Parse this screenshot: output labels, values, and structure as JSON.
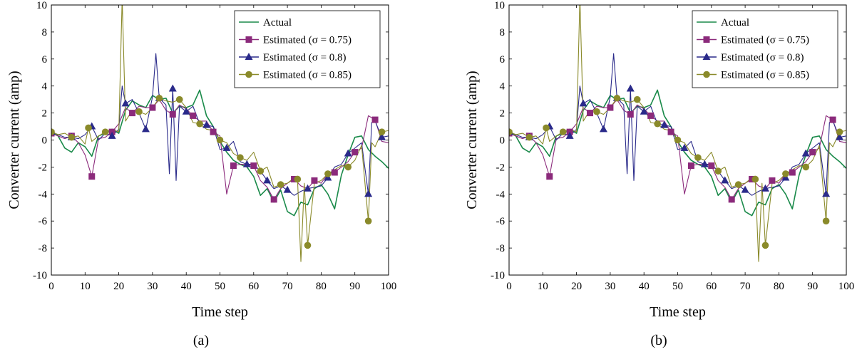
{
  "figure": {
    "captions": [
      "(a)",
      "(b)"
    ]
  },
  "chart_data": [
    {
      "type": "line",
      "caption": "(a)",
      "xlabel": "Time step",
      "ylabel": "Converter current (amp)",
      "xlim": [
        0,
        100
      ],
      "ylim": [
        -10,
        10
      ],
      "xticks": [
        0,
        10,
        20,
        30,
        40,
        50,
        60,
        70,
        80,
        90,
        100
      ],
      "yticks": [
        -10,
        -8,
        -6,
        -4,
        -2,
        0,
        2,
        4,
        6,
        8,
        10
      ],
      "grid": false,
      "legend_position": "top-right",
      "series": [
        {
          "name": "Actual",
          "color": "#1a8a4a",
          "marker": "none",
          "x": [
            0,
            2,
            4,
            6,
            8,
            10,
            12,
            14,
            16,
            18,
            20,
            22,
            24,
            26,
            28,
            30,
            32,
            34,
            36,
            38,
            40,
            42,
            44,
            46,
            48,
            50,
            52,
            54,
            56,
            58,
            60,
            62,
            64,
            66,
            68,
            70,
            72,
            74,
            76,
            78,
            80,
            82,
            84,
            86,
            88,
            90,
            92,
            94,
            96,
            98,
            100
          ],
          "y": [
            0.7,
            0.3,
            -0.6,
            -0.9,
            -0.2,
            -0.5,
            -1.2,
            0.3,
            0.5,
            0.8,
            0.5,
            2.2,
            2.9,
            2.6,
            2.4,
            3.3,
            3.0,
            3.1,
            2.0,
            2.5,
            2.4,
            2.6,
            3.7,
            1.8,
            1.0,
            -0.1,
            -0.9,
            -1.5,
            -1.8,
            -2.0,
            -2.7,
            -4.1,
            -3.6,
            -4.6,
            -3.7,
            -5.3,
            -5.6,
            -4.6,
            -4.8,
            -3.6,
            -3.3,
            -4.0,
            -5.1,
            -2.6,
            -1.1,
            0.2,
            0.3,
            -0.7,
            -1.2,
            -1.6,
            -2.1
          ]
        },
        {
          "name": "Estimated (σ = 0.75)",
          "color": "#8b2a7b",
          "marker": "square",
          "x": [
            0,
            2,
            4,
            6,
            8,
            10,
            12,
            14,
            16,
            18,
            20,
            22,
            24,
            26,
            28,
            30,
            32,
            34,
            36,
            38,
            40,
            42,
            44,
            46,
            48,
            50,
            52,
            54,
            56,
            58,
            60,
            62,
            64,
            66,
            68,
            70,
            72,
            74,
            76,
            78,
            80,
            82,
            84,
            86,
            88,
            90,
            92,
            94,
            96,
            98,
            100
          ],
          "y": [
            0.5,
            0.3,
            0.1,
            0.3,
            -0.2,
            -1.1,
            -2.7,
            0.1,
            0.2,
            0.6,
            1.2,
            2.4,
            2.0,
            2.5,
            2.4,
            2.4,
            3.0,
            2.2,
            1.9,
            2.6,
            2.3,
            1.8,
            1.4,
            1.4,
            0.6,
            0.3,
            -4.0,
            -1.9,
            -1.8,
            -1.8,
            -1.9,
            -3.0,
            -3.5,
            -4.4,
            -3.6,
            -3.2,
            -2.9,
            -3.4,
            -3.6,
            -3.0,
            -3.2,
            -2.5,
            -2.4,
            -2.0,
            -1.6,
            -0.9,
            -0.6,
            1.8,
            1.5,
            -0.1,
            -0.2
          ]
        },
        {
          "name": "Estimated (σ = 0.8)",
          "color": "#2a2a8a",
          "marker": "triangle",
          "x": [
            0,
            2,
            4,
            6,
            8,
            10,
            12,
            14,
            16,
            18,
            20,
            21,
            22,
            24,
            26,
            28,
            30,
            31,
            32,
            34,
            35,
            36,
            37,
            38,
            40,
            42,
            44,
            46,
            48,
            50,
            52,
            54,
            56,
            58,
            60,
            62,
            64,
            66,
            68,
            70,
            72,
            74,
            76,
            78,
            80,
            82,
            84,
            86,
            88,
            90,
            92,
            94,
            95,
            96,
            98,
            100
          ],
          "y": [
            0.6,
            0.4,
            0.2,
            0.2,
            0.1,
            0.4,
            1.0,
            0.0,
            0.5,
            0.3,
            0.8,
            4.0,
            2.7,
            3.0,
            2.0,
            0.8,
            3.2,
            6.4,
            3.1,
            2.6,
            -2.5,
            3.8,
            -3.0,
            2.5,
            2.1,
            2.5,
            1.2,
            1.1,
            1.0,
            -0.7,
            -0.6,
            -0.1,
            -1.6,
            -1.8,
            -1.8,
            -2.3,
            -3.0,
            -3.6,
            -3.4,
            -3.7,
            -4.1,
            -3.8,
            -3.6,
            -3.5,
            -3.4,
            -2.8,
            -2.0,
            -1.8,
            -1.0,
            -0.6,
            -0.2,
            -4.0,
            1.3,
            1.4,
            0.2,
            0.3
          ]
        },
        {
          "name": "Estimated (σ = 0.85)",
          "color": "#8a8a2a",
          "marker": "circle",
          "x": [
            0,
            2,
            4,
            6,
            8,
            10,
            11,
            12,
            14,
            16,
            18,
            20,
            21,
            22,
            24,
            26,
            28,
            30,
            32,
            34,
            36,
            38,
            40,
            42,
            44,
            46,
            48,
            50,
            52,
            54,
            56,
            58,
            60,
            62,
            64,
            66,
            68,
            70,
            72,
            73,
            74,
            75,
            76,
            78,
            80,
            82,
            84,
            86,
            88,
            90,
            92,
            94,
            95,
            96,
            98,
            100
          ],
          "y": [
            0.6,
            0.4,
            0.5,
            0.2,
            0.3,
            -0.3,
            0.9,
            -0.1,
            0.3,
            0.6,
            0.8,
            0.6,
            10.5,
            1.4,
            2.2,
            2.1,
            1.9,
            2.4,
            3.1,
            2.9,
            2.8,
            3.0,
            2.4,
            1.3,
            1.2,
            0.8,
            0.7,
            0.0,
            -0.2,
            -1.0,
            -1.3,
            -1.5,
            -0.9,
            -2.3,
            -2.0,
            -3.5,
            -3.3,
            -3.2,
            -2.8,
            -2.9,
            -9.0,
            -3.2,
            -7.8,
            -3.2,
            -3.0,
            -2.5,
            -2.2,
            -1.9,
            -2.0,
            -1.5,
            -0.4,
            -6.0,
            -0.2,
            -0.5,
            0.6,
            0.7
          ]
        }
      ]
    },
    {
      "type": "line",
      "caption": "(b)",
      "xlabel": "Time step",
      "ylabel": "Converter current (amp)",
      "xlim": [
        0,
        100
      ],
      "ylim": [
        -10,
        10
      ],
      "xticks": [
        0,
        10,
        20,
        30,
        40,
        50,
        60,
        70,
        80,
        90,
        100
      ],
      "yticks": [
        -10,
        -8,
        -6,
        -4,
        -2,
        0,
        2,
        4,
        6,
        8,
        10
      ],
      "grid": false,
      "legend_position": "top-right",
      "series": [
        {
          "name": "Actual",
          "color": "#1a8a4a",
          "marker": "none",
          "x": [
            0,
            2,
            4,
            6,
            8,
            10,
            12,
            14,
            16,
            18,
            20,
            22,
            24,
            26,
            28,
            30,
            32,
            34,
            36,
            38,
            40,
            42,
            44,
            46,
            48,
            50,
            52,
            54,
            56,
            58,
            60,
            62,
            64,
            66,
            68,
            70,
            72,
            74,
            76,
            78,
            80,
            82,
            84,
            86,
            88,
            90,
            92,
            94,
            96,
            98,
            100
          ],
          "y": [
            0.7,
            0.3,
            -0.6,
            -0.9,
            -0.2,
            -0.5,
            -1.2,
            0.3,
            0.5,
            0.8,
            0.5,
            2.2,
            2.9,
            2.6,
            2.4,
            3.3,
            3.0,
            3.1,
            2.0,
            2.5,
            2.4,
            2.6,
            3.7,
            1.8,
            1.0,
            -0.1,
            -0.9,
            -1.5,
            -1.8,
            -2.0,
            -2.7,
            -4.1,
            -3.6,
            -4.6,
            -3.7,
            -5.3,
            -5.6,
            -4.6,
            -4.8,
            -3.6,
            -3.3,
            -4.0,
            -5.1,
            -2.6,
            -1.1,
            0.2,
            0.3,
            -0.7,
            -1.2,
            -1.6,
            -2.1
          ]
        },
        {
          "name": "Estimated (σ = 0.75)",
          "color": "#8b2a7b",
          "marker": "square",
          "x": [
            0,
            2,
            4,
            6,
            8,
            10,
            12,
            14,
            16,
            18,
            20,
            22,
            24,
            26,
            28,
            30,
            32,
            34,
            36,
            38,
            40,
            42,
            44,
            46,
            48,
            50,
            52,
            54,
            56,
            58,
            60,
            62,
            64,
            66,
            68,
            70,
            72,
            74,
            76,
            78,
            80,
            82,
            84,
            86,
            88,
            90,
            92,
            94,
            96,
            98,
            100
          ],
          "y": [
            0.5,
            0.3,
            0.1,
            0.3,
            -0.2,
            -1.1,
            -2.7,
            0.1,
            0.2,
            0.6,
            1.2,
            2.4,
            2.0,
            2.5,
            2.4,
            2.4,
            3.0,
            2.2,
            1.9,
            2.6,
            2.3,
            1.8,
            1.4,
            1.4,
            0.6,
            0.3,
            -4.0,
            -1.9,
            -1.8,
            -1.8,
            -1.9,
            -3.0,
            -3.5,
            -4.4,
            -3.6,
            -3.2,
            -2.9,
            -3.4,
            -3.6,
            -3.0,
            -3.2,
            -2.5,
            -2.4,
            -2.0,
            -1.6,
            -0.9,
            -0.6,
            1.8,
            1.5,
            -0.1,
            -0.2
          ]
        },
        {
          "name": "Estimated (σ = 0.8)",
          "color": "#2a2a8a",
          "marker": "triangle",
          "x": [
            0,
            2,
            4,
            6,
            8,
            10,
            12,
            14,
            16,
            18,
            20,
            21,
            22,
            24,
            26,
            28,
            30,
            31,
            32,
            34,
            35,
            36,
            37,
            38,
            40,
            42,
            44,
            46,
            48,
            50,
            52,
            54,
            56,
            58,
            60,
            62,
            64,
            66,
            68,
            70,
            72,
            74,
            76,
            78,
            80,
            82,
            84,
            86,
            88,
            90,
            92,
            94,
            95,
            96,
            98,
            100
          ],
          "y": [
            0.6,
            0.4,
            0.2,
            0.2,
            0.1,
            0.4,
            1.0,
            0.0,
            0.5,
            0.3,
            0.8,
            4.0,
            2.7,
            3.0,
            2.0,
            0.8,
            3.2,
            6.4,
            3.1,
            2.6,
            -2.5,
            3.8,
            -3.0,
            2.5,
            2.1,
            2.5,
            1.2,
            1.1,
            1.0,
            -0.7,
            -0.6,
            -0.1,
            -1.6,
            -1.8,
            -1.8,
            -2.3,
            -3.0,
            -3.6,
            -3.4,
            -3.7,
            -4.1,
            -3.8,
            -3.6,
            -3.5,
            -3.4,
            -2.8,
            -2.0,
            -1.8,
            -1.0,
            -0.6,
            -0.2,
            -4.0,
            1.3,
            1.4,
            0.2,
            0.3
          ]
        },
        {
          "name": "Estimated (σ = 0.85)",
          "color": "#8a8a2a",
          "marker": "circle",
          "x": [
            0,
            2,
            4,
            6,
            8,
            10,
            11,
            12,
            14,
            16,
            18,
            20,
            21,
            22,
            24,
            26,
            28,
            30,
            32,
            34,
            36,
            38,
            40,
            42,
            44,
            46,
            48,
            50,
            52,
            54,
            56,
            58,
            60,
            62,
            64,
            66,
            68,
            70,
            72,
            73,
            74,
            75,
            76,
            78,
            80,
            82,
            84,
            86,
            88,
            90,
            92,
            94,
            95,
            96,
            98,
            100
          ],
          "y": [
            0.6,
            0.4,
            0.5,
            0.2,
            0.3,
            -0.3,
            0.9,
            -0.1,
            0.3,
            0.6,
            0.8,
            0.6,
            10.5,
            1.4,
            2.2,
            2.1,
            1.9,
            2.4,
            3.1,
            2.9,
            2.8,
            3.0,
            2.4,
            1.3,
            1.2,
            0.8,
            0.7,
            0.0,
            -0.2,
            -1.0,
            -1.3,
            -1.5,
            -0.9,
            -2.3,
            -2.0,
            -3.5,
            -3.3,
            -3.2,
            -2.8,
            -2.9,
            -9.0,
            -3.2,
            -7.8,
            -3.2,
            -3.0,
            -2.5,
            -2.2,
            -1.9,
            -2.0,
            -1.5,
            -0.4,
            -6.0,
            -0.2,
            -0.5,
            0.6,
            0.7
          ]
        }
      ]
    }
  ]
}
